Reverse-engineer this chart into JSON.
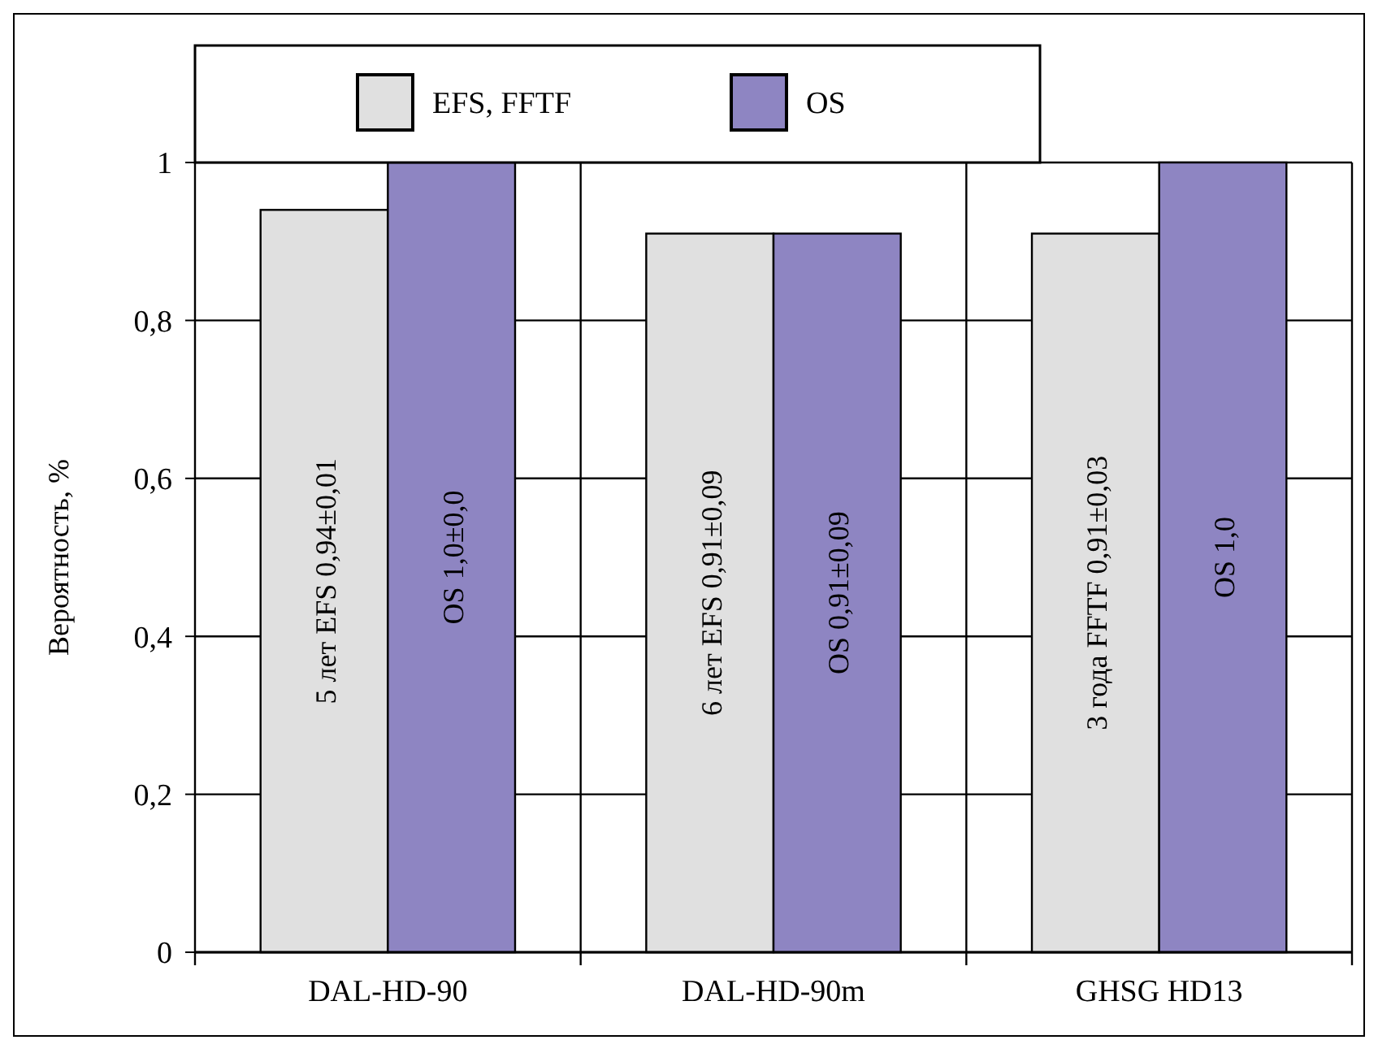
{
  "chart_data": {
    "type": "bar",
    "ylabel": "Вероятность, %",
    "categories": [
      "DAL-HD-90",
      "DAL-HD-90m",
      "GHSG HD13"
    ],
    "series": [
      {
        "name": "EFS, FFTF",
        "color": "#e0e0e0",
        "values": [
          0.94,
          0.91,
          0.91
        ],
        "value_labels": [
          "5 лет EFS 0,94±0,01",
          "6 лет EFS 0,91±0,09",
          "3 года FFTF 0,91±0,03"
        ]
      },
      {
        "name": "OS",
        "color": "#8e85c2",
        "values": [
          1.0,
          0.91,
          1.0
        ],
        "value_labels": [
          "OS 1,0±0,0",
          "OS 0,91±0,09",
          "OS 1,0"
        ]
      }
    ],
    "ylim": [
      0,
      1
    ],
    "yticks": [
      {
        "value": 0,
        "label": "0"
      },
      {
        "value": 0.2,
        "label": "0,2"
      },
      {
        "value": 0.4,
        "label": "0,4"
      },
      {
        "value": 0.6,
        "label": "0,6"
      },
      {
        "value": 0.8,
        "label": "0,8"
      },
      {
        "value": 1,
        "label": "1"
      }
    ],
    "grid": true,
    "legend": "top"
  }
}
